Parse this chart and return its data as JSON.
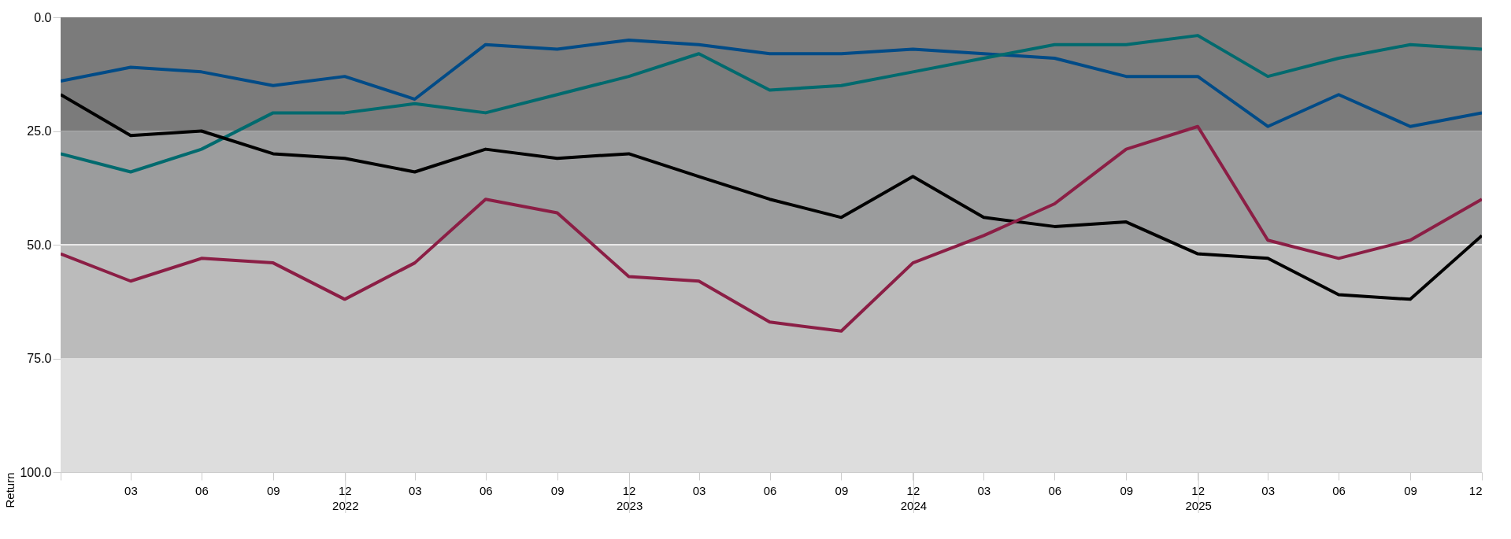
{
  "chart_data": {
    "type": "line",
    "ylabel": "Return",
    "x": [
      "2020-12-31",
      "2021-03-31",
      "2021-06-30",
      "2021-09-30",
      "2021-12-31",
      "2022-03-31",
      "2022-06-30",
      "2022-09-30",
      "2022-12-31",
      "2023-03-31",
      "2023-06-30",
      "2023-09-30",
      "2023-12-31",
      "2024-03-31",
      "2024-06-30",
      "2024-09-30",
      "2024-12-31",
      "2025-03-31",
      "2025-06-30",
      "2025-09-30",
      "2025-12-31"
    ],
    "series": [
      {
        "color": "#004b87",
        "values": [
          14,
          11,
          12,
          15,
          13,
          18,
          6,
          7,
          5,
          6,
          8,
          8,
          7,
          8,
          9,
          13,
          13,
          24,
          17,
          24,
          21
        ]
      },
      {
        "color": "#006a6e",
        "values": [
          30,
          34,
          29,
          21,
          21,
          19,
          21,
          17,
          13,
          8,
          16,
          15,
          12,
          9,
          6,
          6,
          4,
          13,
          9,
          6,
          7
        ]
      },
      {
        "color": "#000000",
        "values": [
          17,
          26,
          25,
          30,
          31,
          34,
          29,
          31,
          30,
          35,
          40,
          44,
          35,
          44,
          46,
          45,
          52,
          53,
          61,
          62,
          48
        ]
      },
      {
        "color": "#8b1e45",
        "values": [
          52,
          58,
          53,
          54,
          62,
          54,
          40,
          43,
          57,
          58,
          67,
          69,
          54,
          48,
          41,
          29,
          24,
          49,
          53,
          49,
          40
        ]
      }
    ],
    "ylim": [
      100,
      0
    ],
    "yticks": [
      {
        "value": 0,
        "label": "0.0"
      },
      {
        "value": 25,
        "label": "25.0"
      },
      {
        "value": 50,
        "label": "50.0"
      },
      {
        "value": 75,
        "label": "75.0"
      },
      {
        "value": 100,
        "label": "100.0"
      }
    ],
    "xlim": [
      "2020-12-31",
      "2025-12-31"
    ],
    "xticks": [
      {
        "value": "2020-12-31",
        "label": null
      },
      {
        "value": "2021-03-31",
        "label": "03"
      },
      {
        "value": "2021-06-30",
        "label": "06"
      },
      {
        "value": "2021-09-30",
        "label": "09"
      },
      {
        "value": "2021-12-31",
        "label": "12"
      },
      {
        "value": "2022-03-31",
        "label": "03"
      },
      {
        "value": "2022-06-30",
        "label": "06"
      },
      {
        "value": "2022-09-30",
        "label": "09"
      },
      {
        "value": "2022-12-31",
        "label": "12"
      },
      {
        "value": "2023-03-31",
        "label": "03"
      },
      {
        "value": "2023-06-30",
        "label": "06"
      },
      {
        "value": "2023-09-30",
        "label": "09"
      },
      {
        "value": "2023-12-31",
        "label": "12"
      },
      {
        "value": "2024-03-31",
        "label": "03"
      },
      {
        "value": "2024-06-30",
        "label": "06"
      },
      {
        "value": "2024-09-30",
        "label": "09"
      },
      {
        "value": "2024-12-31",
        "label": "12"
      },
      {
        "value": "2025-03-31",
        "label": "03"
      },
      {
        "value": "2025-06-30",
        "label": "06"
      },
      {
        "value": "2025-09-30",
        "label": "09"
      },
      {
        "value": "2025-12-31",
        "label": "12"
      }
    ],
    "x2lim": [
      "2020-12-31",
      "2025-12-31"
    ],
    "x2ticks": [
      {
        "value": "2022-01-01",
        "label": "2022"
      },
      {
        "value": "2023-01-01",
        "label": "2023"
      },
      {
        "value": "2024-01-01",
        "label": "2024"
      },
      {
        "value": "2025-01-01",
        "label": "2025"
      }
    ],
    "bands": [
      {
        "axis": "y",
        "from": 0,
        "to": 25,
        "color": "#7b7b7b"
      },
      {
        "axis": "y",
        "from": 25,
        "to": 50,
        "color": "#9b9c9d"
      },
      {
        "axis": "y",
        "from": 50,
        "to": 75,
        "color": "#bbbbbb"
      },
      {
        "axis": "y",
        "from": 75,
        "to": 100,
        "color": "#dddddd"
      }
    ],
    "ref_lines": [
      {
        "axis": "y",
        "value": 50,
        "color": "#ffffff"
      }
    ],
    "grid": false,
    "legend": false,
    "marker": "none",
    "line_style": "solid"
  }
}
